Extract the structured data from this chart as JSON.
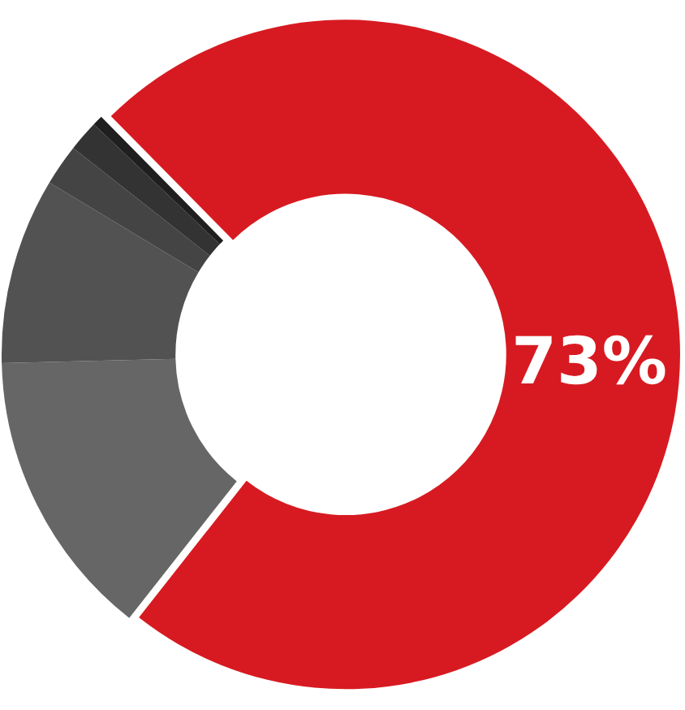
{
  "chart_data": {
    "type": "donut",
    "categories": [
      null,
      null,
      null,
      null,
      null,
      null
    ],
    "values": [
      73,
      14,
      9,
      2,
      1.5,
      0.5
    ],
    "colors": [
      "#d71a21",
      "#666666",
      "#525252",
      "#444444",
      "#333333",
      "#1f1f1f"
    ],
    "value_labels": [
      "73%",
      null,
      null,
      null,
      null,
      null
    ]
  }
}
